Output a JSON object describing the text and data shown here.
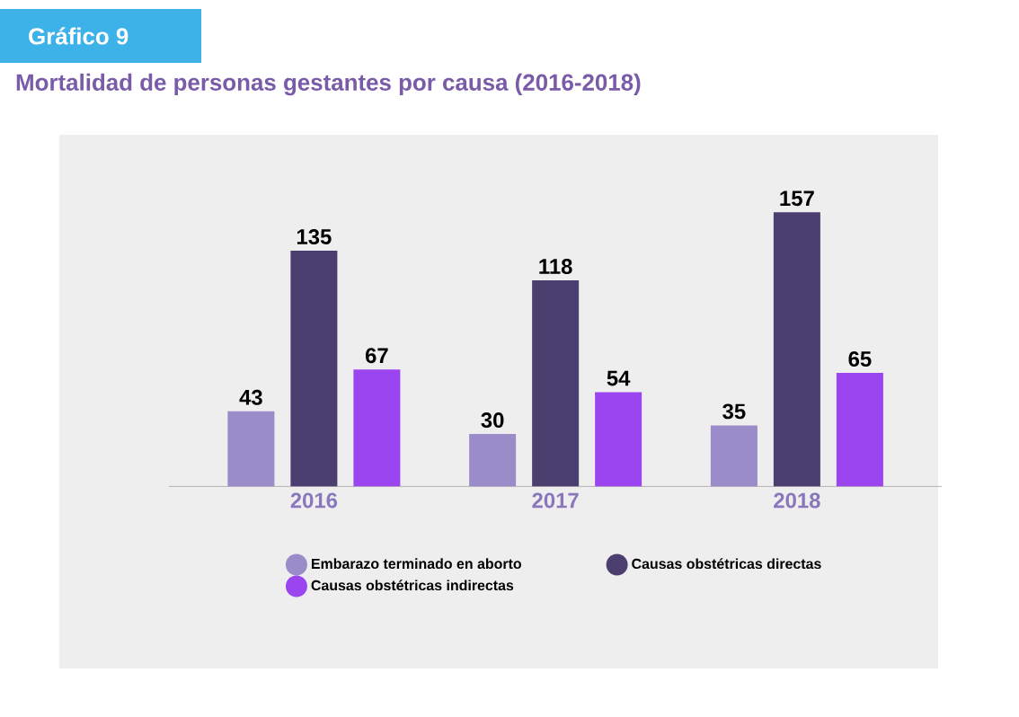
{
  "chart_data": {
    "type": "bar",
    "title": "Gráfico 9",
    "subtitle": "Mortalidad de personas gestantes por causa (2016-2018)",
    "categories": [
      "2016",
      "2017",
      "2018"
    ],
    "series": [
      {
        "name": "Embarazo terminado en aborto",
        "color": "#9a8bc9",
        "values": [
          43,
          30,
          35
        ]
      },
      {
        "name": "Causas obstétricas directas",
        "color": "#4a3f6e",
        "values": [
          135,
          118,
          157
        ]
      },
      {
        "name": "Causas obstétricas indirectas",
        "color": "#9b45f0",
        "values": [
          67,
          54,
          65
        ]
      }
    ],
    "data_labels": true,
    "legend": "bottom"
  }
}
